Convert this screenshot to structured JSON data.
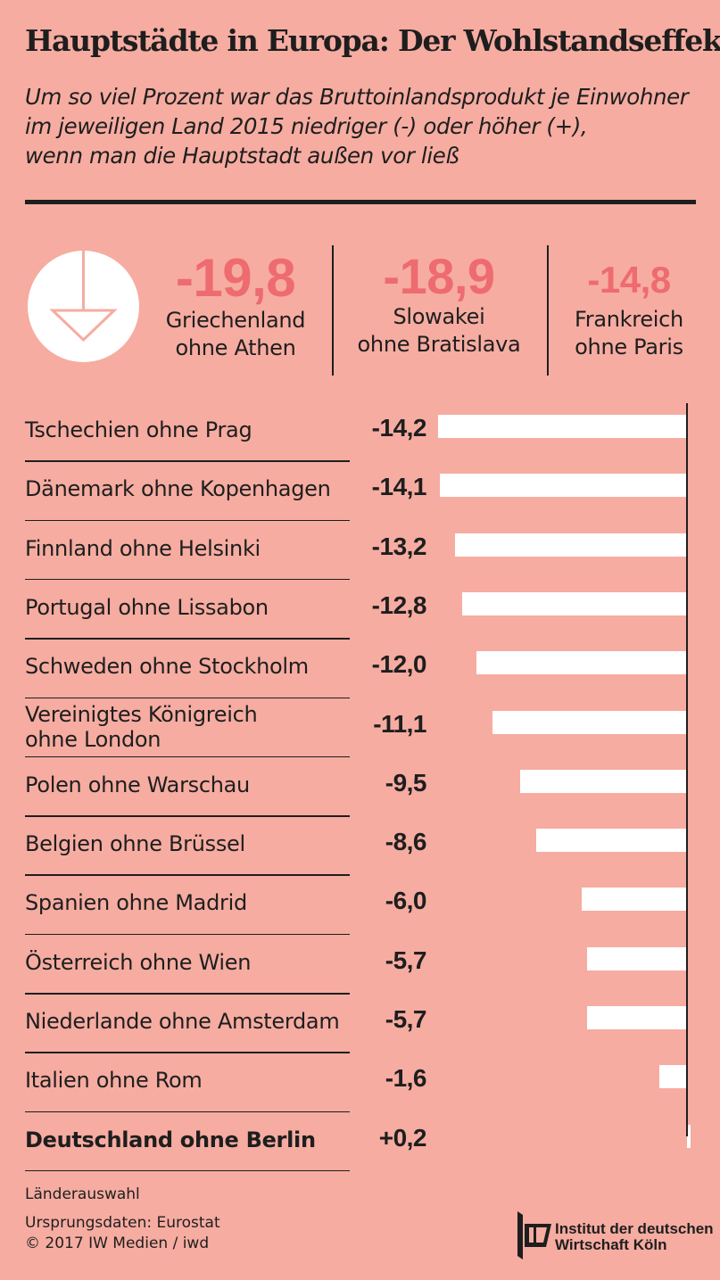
{
  "title": "Hauptstädte in Europa: Der Wohlstandseffekt",
  "subtitle": [
    "Um so viel Prozent war das Bruttoinlandsprodukt je Einwohner",
    "im jeweiligen Land 2015 niedriger (-) oder höher (+),",
    "wenn man die Hauptstadt außen vor ließ"
  ],
  "top": [
    {
      "value": "-19,8",
      "line1": "Griechenland",
      "line2": "ohne Athen"
    },
    {
      "value": "-18,9",
      "line1": "Slowakei",
      "line2": "ohne Bratislava"
    },
    {
      "value": "-14,8",
      "line1": "Frankreich",
      "line2": "ohne Paris"
    }
  ],
  "chart_data": {
    "type": "bar",
    "categories": [
      "Tschechien ohne Prag",
      "Dänemark ohne Kopenhagen",
      "Finnland ohne Helsinki",
      "Portugal ohne Lissabon",
      "Schweden ohne Stockholm",
      "Vereinigtes Königreich ohne London",
      "Polen ohne Warschau",
      "Belgien ohne Brüssel",
      "Spanien ohne Madrid",
      "Österreich ohne Wien",
      "Niederlande ohne Amsterdam",
      "Italien ohne Rom",
      "Deutschland ohne Berlin"
    ],
    "values": [
      -14.2,
      -14.1,
      -13.2,
      -12.8,
      -12.0,
      -11.1,
      -9.5,
      -8.6,
      -6.0,
      -5.7,
      -5.7,
      -1.6,
      0.2
    ],
    "value_labels": [
      "-14,2",
      "-14,1",
      "-13,2",
      "-12,8",
      "-12,0",
      "-11,1",
      "-9,5",
      "-8,6",
      "-6,0",
      "-5,7",
      "-5,7",
      "-1,6",
      "+0,2"
    ],
    "highlight": "Deutschland ohne Berlin",
    "bar_color": "#ffffff",
    "accent_color": "#ee6b70",
    "background": "#f6aca1"
  },
  "footer": {
    "note": "Länderauswahl",
    "source": "Ursprungsdaten: Eurostat",
    "copyright": "© 2017 IW Medien / iwd",
    "logo_line1": "Institut der deutschen",
    "logo_line2": "Wirtschaft Köln"
  }
}
